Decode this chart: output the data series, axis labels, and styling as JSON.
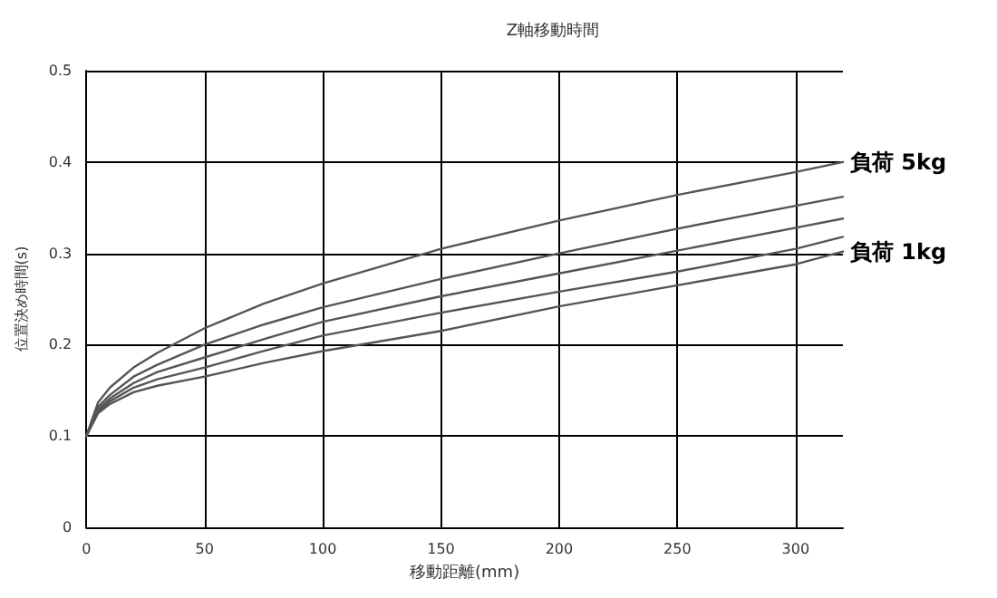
{
  "chart_data": {
    "type": "line",
    "title": "Z軸移動時間",
    "xlabel": "移動距離(mm)",
    "ylabel": "位置決め時間(s)",
    "x": [
      0,
      5,
      10,
      20,
      30,
      50,
      75,
      100,
      150,
      200,
      250,
      300,
      320
    ],
    "series": [
      {
        "name": "負荷 5kg",
        "color": "#555555",
        "values": [
          0.1,
          0.137,
          0.153,
          0.175,
          0.191,
          0.218,
          0.245,
          0.267,
          0.305,
          0.336,
          0.364,
          0.389,
          0.4
        ]
      },
      {
        "color": "#555555",
        "values": [
          0.1,
          0.132,
          0.145,
          0.165,
          0.178,
          0.2,
          0.222,
          0.241,
          0.272,
          0.3,
          0.327,
          0.352,
          0.362
        ]
      },
      {
        "color": "#555555",
        "values": [
          0.1,
          0.129,
          0.141,
          0.158,
          0.17,
          0.186,
          0.206,
          0.225,
          0.253,
          0.278,
          0.303,
          0.328,
          0.338
        ]
      },
      {
        "color": "#555555",
        "values": [
          0.1,
          0.127,
          0.138,
          0.153,
          0.162,
          0.175,
          0.193,
          0.21,
          0.235,
          0.258,
          0.28,
          0.305,
          0.318
        ]
      },
      {
        "name": "負荷 1kg",
        "color": "#555555",
        "values": [
          0.1,
          0.125,
          0.135,
          0.148,
          0.155,
          0.165,
          0.18,
          0.193,
          0.215,
          0.242,
          0.265,
          0.288,
          0.302
        ]
      }
    ],
    "xlim": [
      0,
      320
    ],
    "xticks": [
      0,
      50,
      100,
      150,
      200,
      250,
      300
    ],
    "ylim": [
      0,
      0.5
    ],
    "yticks": [
      0,
      0.1,
      0.2,
      0.3,
      0.4,
      0.5
    ],
    "grid": true,
    "legend": false,
    "marker": "none",
    "line_style": "solid"
  }
}
